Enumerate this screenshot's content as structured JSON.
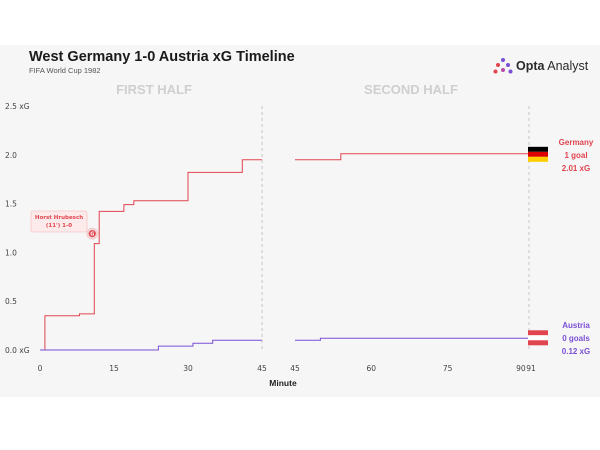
{
  "header": {
    "title": "West Germany 1-0 Austria xG Timeline",
    "subtitle": "FIFA World Cup 1982",
    "brand_bold": "Opta",
    "brand_regular": " Analyst",
    "brand_logo_icon": "opta-dots-icon"
  },
  "chart_data": {
    "type": "line",
    "title": "West Germany 1-0 Austria xG Timeline",
    "subtitle": "FIFA World Cup 1982",
    "xlabel": "Minute",
    "ylabel": "",
    "halves": [
      {
        "label": "FIRST HALF",
        "xlim": [
          0,
          46
        ],
        "ticks": [
          0,
          15,
          30,
          45
        ]
      },
      {
        "label": "SECOND HALF",
        "xlim": [
          45,
          92
        ],
        "ticks": [
          45,
          60,
          75,
          90,
          91
        ]
      }
    ],
    "ylim": [
      0,
      2.5
    ],
    "yticks": [
      {
        "value": 0,
        "label": "0.0 xG"
      },
      {
        "value": 0.5,
        "label": "0.5"
      },
      {
        "value": 1.0,
        "label": "1.0"
      },
      {
        "value": 1.5,
        "label": "1.5"
      },
      {
        "value": 2.0,
        "label": "2.0"
      },
      {
        "value": 2.5,
        "label": "2.5 xG"
      }
    ],
    "grid": false,
    "series": [
      {
        "name": "Germany",
        "color": "#e0454f",
        "flag_icon": "germany-flag-icon",
        "end_labels": [
          "Germany",
          "1 goal",
          "2.01 xG"
        ],
        "first_half": [
          [
            0,
            0
          ],
          [
            1,
            0.35
          ],
          [
            8,
            0.37
          ],
          [
            11,
            1.09
          ],
          [
            12,
            1.42
          ],
          [
            17,
            1.49
          ],
          [
            19,
            1.53
          ],
          [
            30,
            1.82
          ],
          [
            41,
            1.95
          ],
          [
            45,
            1.95
          ]
        ],
        "second_half": [
          [
            45,
            1.95
          ],
          [
            54,
            2.01
          ],
          [
            91,
            2.01
          ]
        ]
      },
      {
        "name": "Austria",
        "color": "#7a4fd6",
        "flag_icon": "austria-flag-icon",
        "end_labels": [
          "Austria",
          "0 goals",
          "0.12 xG"
        ],
        "first_half": [
          [
            0,
            0
          ],
          [
            24,
            0.04
          ],
          [
            31,
            0.07
          ],
          [
            35,
            0.1
          ],
          [
            45,
            0.1
          ]
        ],
        "second_half": [
          [
            45,
            0.1
          ],
          [
            50,
            0.12
          ],
          [
            91,
            0.12
          ]
        ]
      }
    ],
    "annotations": [
      {
        "series": "Germany",
        "minute": 11,
        "value": 1.09,
        "marker": "G",
        "lines": [
          "Horst Hrubesch",
          "(11') 1-0"
        ]
      }
    ]
  }
}
